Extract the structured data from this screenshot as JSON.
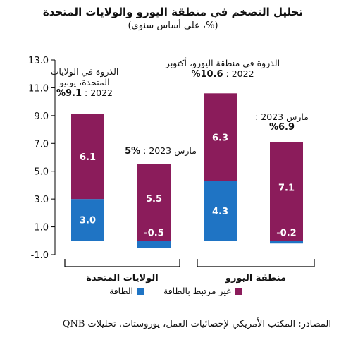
{
  "chart_data": {
    "type": "bar",
    "stacked": true,
    "title": "تحليل التضخم في منطقة اليورو والولايات المتحدة",
    "subtitle": "(%، على أساس سنوي)",
    "ylim": [
      -1.0,
      13.0
    ],
    "yticks": [
      "13.0",
      "11.0",
      "9.0",
      "7.0",
      "5.0",
      "3.0",
      "1.0",
      "-1.0"
    ],
    "grid": false,
    "legend_position": "bottom",
    "groups": [
      {
        "label": "الولايات المتحدة",
        "categories": [
          "الذروة في الولايات المتحدة، يونيو 2022",
          "مارس 2023"
        ]
      },
      {
        "label": "منطقة اليورو",
        "categories": [
          "الذروة في منطقة اليورو، أكتوبر 2022",
          "مارس 2023"
        ]
      }
    ],
    "series": [
      {
        "name": "الطاقة",
        "color": "#1f74c4",
        "values": [
          3.0,
          -0.5,
          4.3,
          -0.2
        ],
        "labels": [
          "3.0",
          "-0.5",
          "4.3",
          "-0.2"
        ]
      },
      {
        "name": "غير مرتبط بالطاقة",
        "color": "#8b1c5b",
        "values": [
          6.1,
          5.5,
          6.3,
          7.1
        ],
        "labels": [
          "6.1",
          "5.5",
          "6.3",
          "7.1"
        ]
      }
    ],
    "annotations": [
      {
        "line1": "الذروة في الولايات",
        "line2": "المتحدة، يونيو",
        "line3": "2022 :",
        "value": "%9.1"
      },
      {
        "line1": "مارس 2023 :",
        "value": "%5"
      },
      {
        "line1": "الذروة في منطقة اليورو، أكتوبر",
        "line2": "2022 :",
        "value": "%10.6"
      },
      {
        "line1": "مارس 2023 :",
        "value": "%6.9"
      }
    ]
  },
  "source": "المصادر: المكتب الأمريكي لإحصائيات العمل، يوروستات، تحليلات QNB"
}
